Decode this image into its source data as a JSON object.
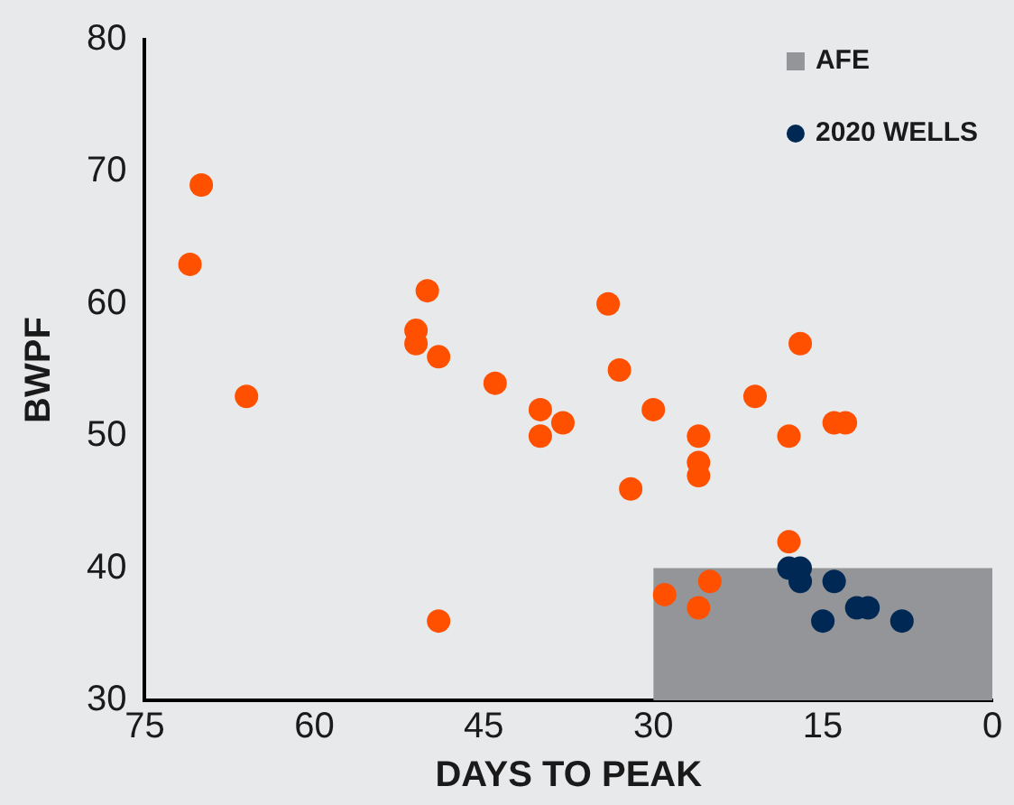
{
  "chart_data": {
    "type": "scatter",
    "xlabel": "DAYS TO PEAK",
    "ylabel": "BWPF",
    "xlim": [
      75,
      0
    ],
    "xticks": [
      75,
      60,
      45,
      30,
      15,
      0
    ],
    "ylim": [
      30,
      80
    ],
    "yticks": [
      30,
      40,
      50,
      60,
      70,
      80
    ],
    "grid": false,
    "legend": "top right",
    "marker": "circle",
    "series": [
      {
        "type": "area",
        "name": "AFE",
        "marker": "none",
        "color": "#939598",
        "x": [
          30,
          0
        ],
        "values": [
          40,
          40
        ]
      },
      {
        "color": "#ff5000",
        "x": [
          70,
          71,
          66,
          50,
          51,
          51,
          49,
          44,
          40,
          40,
          49,
          34,
          33,
          38,
          30,
          32,
          26,
          26,
          26,
          21,
          17,
          18,
          14,
          13,
          18,
          25,
          29,
          26
        ],
        "values": [
          69,
          63,
          53,
          61,
          58,
          57,
          56,
          54,
          52,
          50,
          36,
          60,
          55,
          51,
          52,
          46,
          50,
          48,
          47,
          53,
          57,
          50,
          51,
          51,
          42,
          39,
          38,
          37
        ]
      },
      {
        "name": "2020 WELLS",
        "color": "#002855",
        "x": [
          18,
          17,
          17,
          14,
          15,
          12,
          11,
          8
        ],
        "values": [
          40,
          40,
          39,
          39,
          36,
          37,
          37,
          36
        ]
      }
    ]
  }
}
